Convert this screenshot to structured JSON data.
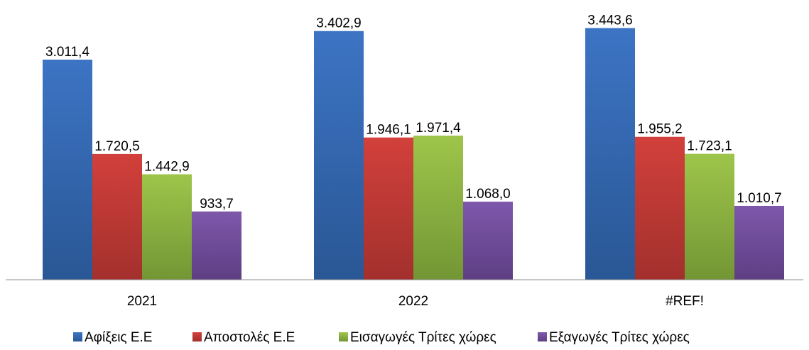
{
  "chart_data": {
    "type": "bar",
    "categories": [
      "2021",
      "2022",
      "#REF!"
    ],
    "series": [
      {
        "name": "Αφίξεις Ε.Ε",
        "values": [
          3011.4,
          3402.9,
          3443.6
        ],
        "labels": [
          "3.011,4",
          "3.402,9",
          "3.443,6"
        ],
        "color": "#3c74c4",
        "color_dark": "#2a5795"
      },
      {
        "name": "Αποστολές  Ε.Ε",
        "values": [
          1720.5,
          1946.1,
          1955.2
        ],
        "labels": [
          "1.720,5",
          "1.946,1",
          "1.955,2"
        ],
        "color": "#d2403b",
        "color_dark": "#a3302d"
      },
      {
        "name": "Εισαγωγές Τρίτες χώρες",
        "values": [
          1442.9,
          1971.4,
          1723.1
        ],
        "labels": [
          "1.442,9",
          "1.971,4",
          "1.723,1"
        ],
        "color": "#9ec54a",
        "color_dark": "#739635"
      },
      {
        "name": "Εξαγωγές Τρίτες χώρες",
        "values": [
          933.7,
          1068.0,
          1010.7
        ],
        "labels": [
          "933,7",
          "1.068,0",
          "1.010,7"
        ],
        "color": "#7e57ab",
        "color_dark": "#5e3f83"
      }
    ],
    "title": "",
    "xlabel": "",
    "ylabel": "",
    "ylim": [
      0,
      3550
    ],
    "grid": false,
    "legend_position": "bottom",
    "data_labels": true
  }
}
